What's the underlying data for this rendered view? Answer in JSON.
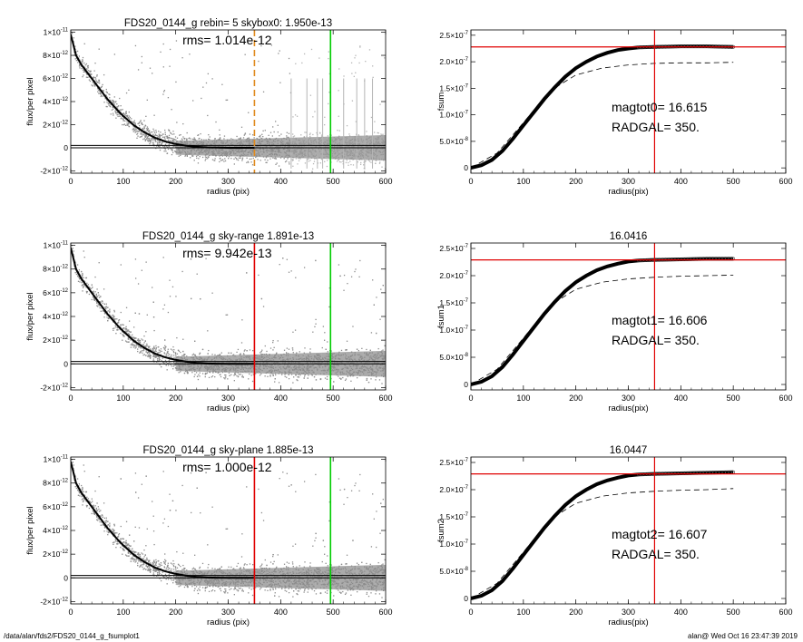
{
  "footer": {
    "path": "/data/alan/fds2/FDS20_0144_g_fsumplot1",
    "stamp": "alan@  Wed Oct 16 23:47:39 2019"
  },
  "colors": {
    "points": "#8c8c8c",
    "points_light": "#b5b5b5",
    "profile": "#000000",
    "red": "#e00000",
    "green": "#00cc00",
    "orange": "#e08a1e",
    "dashed": "#000000"
  },
  "chart_data": [
    {
      "type": "scatter",
      "panel": "left-1",
      "title": "FDS20_0144_g rebin= 5    skybox0:  1.950e-13",
      "annotation": "rms= 1.014e-12",
      "xlabel": "radius (pix)",
      "ylabel": "flux/per pixel",
      "xlim": [
        0,
        600
      ],
      "ylim": [
        -2.2e-12,
        1.02e-11
      ],
      "xticks": [
        "0",
        "100",
        "200",
        "300",
        "400",
        "500",
        "600"
      ],
      "yticks": [
        {
          "v": -2e-12,
          "m": "-2×10",
          "e": "-12"
        },
        {
          "v": 0,
          "m": "0",
          "e": ""
        },
        {
          "v": 2e-12,
          "m": "2×10",
          "e": "-12"
        },
        {
          "v": 4e-12,
          "m": "4×10",
          "e": "-12"
        },
        {
          "v": 6e-12,
          "m": "6×10",
          "e": "-12"
        },
        {
          "v": 8e-12,
          "m": "8×10",
          "e": "-12"
        },
        {
          "v": 1e-11,
          "m": "1×10",
          "e": "-11"
        }
      ],
      "profile": {
        "x": [
          0,
          10,
          20,
          30,
          40,
          50,
          60,
          70,
          80,
          90,
          100,
          120,
          140,
          160,
          180,
          200,
          220,
          240,
          260,
          280,
          300,
          350
        ],
        "y": [
          9.8e-12,
          8e-12,
          7.2e-12,
          6.6e-12,
          6e-12,
          5.4e-12,
          4.8e-12,
          4.2e-12,
          3.7e-12,
          3.2e-12,
          2.75e-12,
          1.95e-12,
          1.35e-12,
          8.8e-13,
          5.5e-13,
          3.3e-13,
          1.8e-13,
          8e-14,
          3e-14,
          1e-14,
          0.0,
          0.0
        ]
      },
      "hlines": [
        0.0,
        2e-13
      ],
      "vlines": [
        {
          "x": 350,
          "color": "orange",
          "dashed": true
        },
        {
          "x": 495,
          "color": "green",
          "dashed": false
        }
      ],
      "extra_vlines": [
        420,
        450,
        470,
        480,
        520,
        545,
        560,
        575
      ]
    },
    {
      "type": "line",
      "panel": "right-1",
      "title": "",
      "xlabel": "radius(pix)",
      "ylabel": "fsum",
      "xlim": [
        0,
        600
      ],
      "ylim": [
        -1e-08,
        2.6e-07
      ],
      "xticks": [
        "0",
        "100",
        "200",
        "300",
        "400",
        "500",
        "600"
      ],
      "yticks": [
        {
          "v": 0,
          "m": "0",
          "e": ""
        },
        {
          "v": 5e-08,
          "m": "5.0×10",
          "e": "-8"
        },
        {
          "v": 1e-07,
          "m": "1.0×10",
          "e": "-7"
        },
        {
          "v": 1.5e-07,
          "m": "1.5×10",
          "e": "-7"
        },
        {
          "v": 2e-07,
          "m": "2.0×10",
          "e": "-7"
        },
        {
          "v": 2.5e-07,
          "m": "2.5×10",
          "e": "-7"
        }
      ],
      "curve": {
        "x": [
          0,
          20,
          40,
          60,
          80,
          100,
          120,
          140,
          160,
          180,
          200,
          220,
          240,
          260,
          280,
          300,
          320,
          350,
          400,
          450,
          500
        ],
        "y": [
          0.0,
          5e-09,
          1.5e-08,
          3.2e-08,
          5.5e-08,
          8e-08,
          1.05e-07,
          1.3e-07,
          1.52e-07,
          1.72e-07,
          1.88e-07,
          2e-07,
          2.1e-07,
          2.17e-07,
          2.22e-07,
          2.25e-07,
          2.27e-07,
          2.28e-07,
          2.29e-07,
          2.29e-07,
          2.28e-07
        ]
      },
      "dashed_curve": {
        "x": [
          0,
          50,
          100,
          150,
          200,
          250,
          300,
          350,
          400,
          450,
          500
        ],
        "y": [
          0.0,
          2.8e-08,
          8.5e-08,
          1.45e-07,
          1.75e-07,
          1.88e-07,
          1.94e-07,
          1.97e-07,
          1.98e-07,
          1.98e-07,
          1.99e-07
        ]
      },
      "hline": 2.28e-07,
      "vline": 350,
      "labels": [
        "magtot0=  16.615",
        "RADGAL=    350."
      ]
    },
    {
      "type": "scatter",
      "panel": "left-2",
      "title": "FDS20_0144_g sky-range  1.891e-13",
      "annotation": "rms= 9.942e-13",
      "xlabel": "radius (pix)",
      "ylabel": "flux/per pixel",
      "xlim": [
        0,
        600
      ],
      "ylim": [
        -2.2e-12,
        1.02e-11
      ],
      "xticks": [
        "0",
        "100",
        "200",
        "300",
        "400",
        "500",
        "600"
      ],
      "yticks": [
        {
          "v": -2e-12,
          "m": "-2×10",
          "e": "-12"
        },
        {
          "v": 0,
          "m": "0",
          "e": ""
        },
        {
          "v": 2e-12,
          "m": "2×10",
          "e": "-12"
        },
        {
          "v": 4e-12,
          "m": "4×10",
          "e": "-12"
        },
        {
          "v": 6e-12,
          "m": "6×10",
          "e": "-12"
        },
        {
          "v": 8e-12,
          "m": "8×10",
          "e": "-12"
        },
        {
          "v": 1e-11,
          "m": "1×10",
          "e": "-11"
        }
      ],
      "profile": {
        "x": [
          0,
          10,
          20,
          30,
          40,
          50,
          60,
          70,
          80,
          90,
          100,
          120,
          140,
          160,
          180,
          200,
          220,
          240,
          260,
          280,
          300,
          350
        ],
        "y": [
          9.8e-12,
          8e-12,
          7.2e-12,
          6.6e-12,
          6e-12,
          5.4e-12,
          4.8e-12,
          4.2e-12,
          3.7e-12,
          3.2e-12,
          2.75e-12,
          1.95e-12,
          1.35e-12,
          8.8e-13,
          5.5e-13,
          3.3e-13,
          1.8e-13,
          8e-14,
          3e-14,
          1e-14,
          0.0,
          0.0
        ]
      },
      "hlines": [
        0.0,
        2e-13
      ],
      "vlines": [
        {
          "x": 350,
          "color": "red",
          "dashed": false
        },
        {
          "x": 495,
          "color": "green",
          "dashed": false
        }
      ],
      "extra_vlines": []
    },
    {
      "type": "line",
      "panel": "right-2",
      "title": "16.0416",
      "xlabel": "radius(pix)",
      "ylabel": "fsum1",
      "xlim": [
        0,
        600
      ],
      "ylim": [
        -1e-08,
        2.6e-07
      ],
      "xticks": [
        "0",
        "100",
        "200",
        "300",
        "400",
        "500",
        "600"
      ],
      "yticks": [
        {
          "v": 0,
          "m": "0",
          "e": ""
        },
        {
          "v": 5e-08,
          "m": "5.0×10",
          "e": "-8"
        },
        {
          "v": 1e-07,
          "m": "1.0×10",
          "e": "-7"
        },
        {
          "v": 1.5e-07,
          "m": "1.5×10",
          "e": "-7"
        },
        {
          "v": 2e-07,
          "m": "2.0×10",
          "e": "-7"
        },
        {
          "v": 2.5e-07,
          "m": "2.5×10",
          "e": "-7"
        }
      ],
      "curve": {
        "x": [
          0,
          20,
          40,
          60,
          80,
          100,
          120,
          140,
          160,
          180,
          200,
          220,
          240,
          260,
          280,
          300,
          320,
          350,
          400,
          450,
          500
        ],
        "y": [
          0.0,
          5e-09,
          1.5e-08,
          3.2e-08,
          5.5e-08,
          8e-08,
          1.05e-07,
          1.3e-07,
          1.52e-07,
          1.72e-07,
          1.88e-07,
          2e-07,
          2.1e-07,
          2.17e-07,
          2.22e-07,
          2.26e-07,
          2.28e-07,
          2.29e-07,
          2.3e-07,
          2.31e-07,
          2.31e-07
        ]
      },
      "dashed_curve": {
        "x": [
          0,
          50,
          100,
          150,
          200,
          250,
          300,
          350,
          400,
          450,
          500
        ],
        "y": [
          0.0,
          2.8e-08,
          8.5e-08,
          1.45e-07,
          1.75e-07,
          1.88e-07,
          1.94e-07,
          1.97e-07,
          1.99e-07,
          2e-07,
          2.01e-07
        ]
      },
      "hline": 2.29e-07,
      "vline": 350,
      "labels": [
        "magtot1=  16.606",
        "RADGAL=    350."
      ]
    },
    {
      "type": "scatter",
      "panel": "left-3",
      "title": "FDS20_0144_g sky-plane  1.885e-13",
      "annotation": "rms= 1.000e-12",
      "xlabel": "radius (pix)",
      "ylabel": "flux/per pixel",
      "xlim": [
        0,
        600
      ],
      "ylim": [
        -2.2e-12,
        1.02e-11
      ],
      "xticks": [
        "0",
        "100",
        "200",
        "300",
        "400",
        "500",
        "600"
      ],
      "yticks": [
        {
          "v": -2e-12,
          "m": "-2×10",
          "e": "-12"
        },
        {
          "v": 0,
          "m": "0",
          "e": ""
        },
        {
          "v": 2e-12,
          "m": "2×10",
          "e": "-12"
        },
        {
          "v": 4e-12,
          "m": "4×10",
          "e": "-12"
        },
        {
          "v": 6e-12,
          "m": "6×10",
          "e": "-12"
        },
        {
          "v": 8e-12,
          "m": "8×10",
          "e": "-12"
        },
        {
          "v": 1e-11,
          "m": "1×10",
          "e": "-11"
        }
      ],
      "profile": {
        "x": [
          0,
          10,
          20,
          30,
          40,
          50,
          60,
          70,
          80,
          90,
          100,
          120,
          140,
          160,
          180,
          200,
          220,
          240,
          260,
          280,
          300,
          350
        ],
        "y": [
          9.8e-12,
          8e-12,
          7.2e-12,
          6.6e-12,
          6e-12,
          5.4e-12,
          4.8e-12,
          4.2e-12,
          3.7e-12,
          3.2e-12,
          2.75e-12,
          1.95e-12,
          1.35e-12,
          8.8e-13,
          5.5e-13,
          3.3e-13,
          1.8e-13,
          8e-14,
          3e-14,
          1e-14,
          0.0,
          0.0
        ]
      },
      "hlines": [
        0.0,
        2e-13
      ],
      "vlines": [
        {
          "x": 350,
          "color": "red",
          "dashed": false
        },
        {
          "x": 495,
          "color": "green",
          "dashed": false
        }
      ],
      "extra_vlines": []
    },
    {
      "type": "line",
      "panel": "right-3",
      "title": "16.0447",
      "xlabel": "radius(pix)",
      "ylabel": "fsum2",
      "xlim": [
        0,
        600
      ],
      "ylim": [
        -1e-08,
        2.6e-07
      ],
      "xticks": [
        "0",
        "100",
        "200",
        "300",
        "400",
        "500",
        "600"
      ],
      "yticks": [
        {
          "v": 0,
          "m": "0",
          "e": ""
        },
        {
          "v": 5e-08,
          "m": "5.0×10",
          "e": "-8"
        },
        {
          "v": 1e-07,
          "m": "1.0×10",
          "e": "-7"
        },
        {
          "v": 1.5e-07,
          "m": "1.5×10",
          "e": "-7"
        },
        {
          "v": 2e-07,
          "m": "2.0×10",
          "e": "-7"
        },
        {
          "v": 2.5e-07,
          "m": "2.5×10",
          "e": "-7"
        }
      ],
      "curve": {
        "x": [
          0,
          20,
          40,
          60,
          80,
          100,
          120,
          140,
          160,
          180,
          200,
          220,
          240,
          260,
          280,
          300,
          320,
          350,
          400,
          450,
          500
        ],
        "y": [
          0.0,
          5e-09,
          1.5e-08,
          3.2e-08,
          5.5e-08,
          8e-08,
          1.05e-07,
          1.3e-07,
          1.52e-07,
          1.72e-07,
          1.88e-07,
          2e-07,
          2.1e-07,
          2.17e-07,
          2.22e-07,
          2.26e-07,
          2.28e-07,
          2.29e-07,
          2.3e-07,
          2.31e-07,
          2.32e-07
        ]
      },
      "dashed_curve": {
        "x": [
          0,
          50,
          100,
          150,
          200,
          250,
          300,
          350,
          400,
          450,
          500
        ],
        "y": [
          0.0,
          2.8e-08,
          8.5e-08,
          1.45e-07,
          1.75e-07,
          1.88e-07,
          1.94e-07,
          1.97e-07,
          1.99e-07,
          2e-07,
          2.02e-07
        ]
      },
      "hline": 2.29e-07,
      "vline": 350,
      "labels": [
        "magtot2=  16.607",
        "RADGAL=    350."
      ]
    }
  ]
}
